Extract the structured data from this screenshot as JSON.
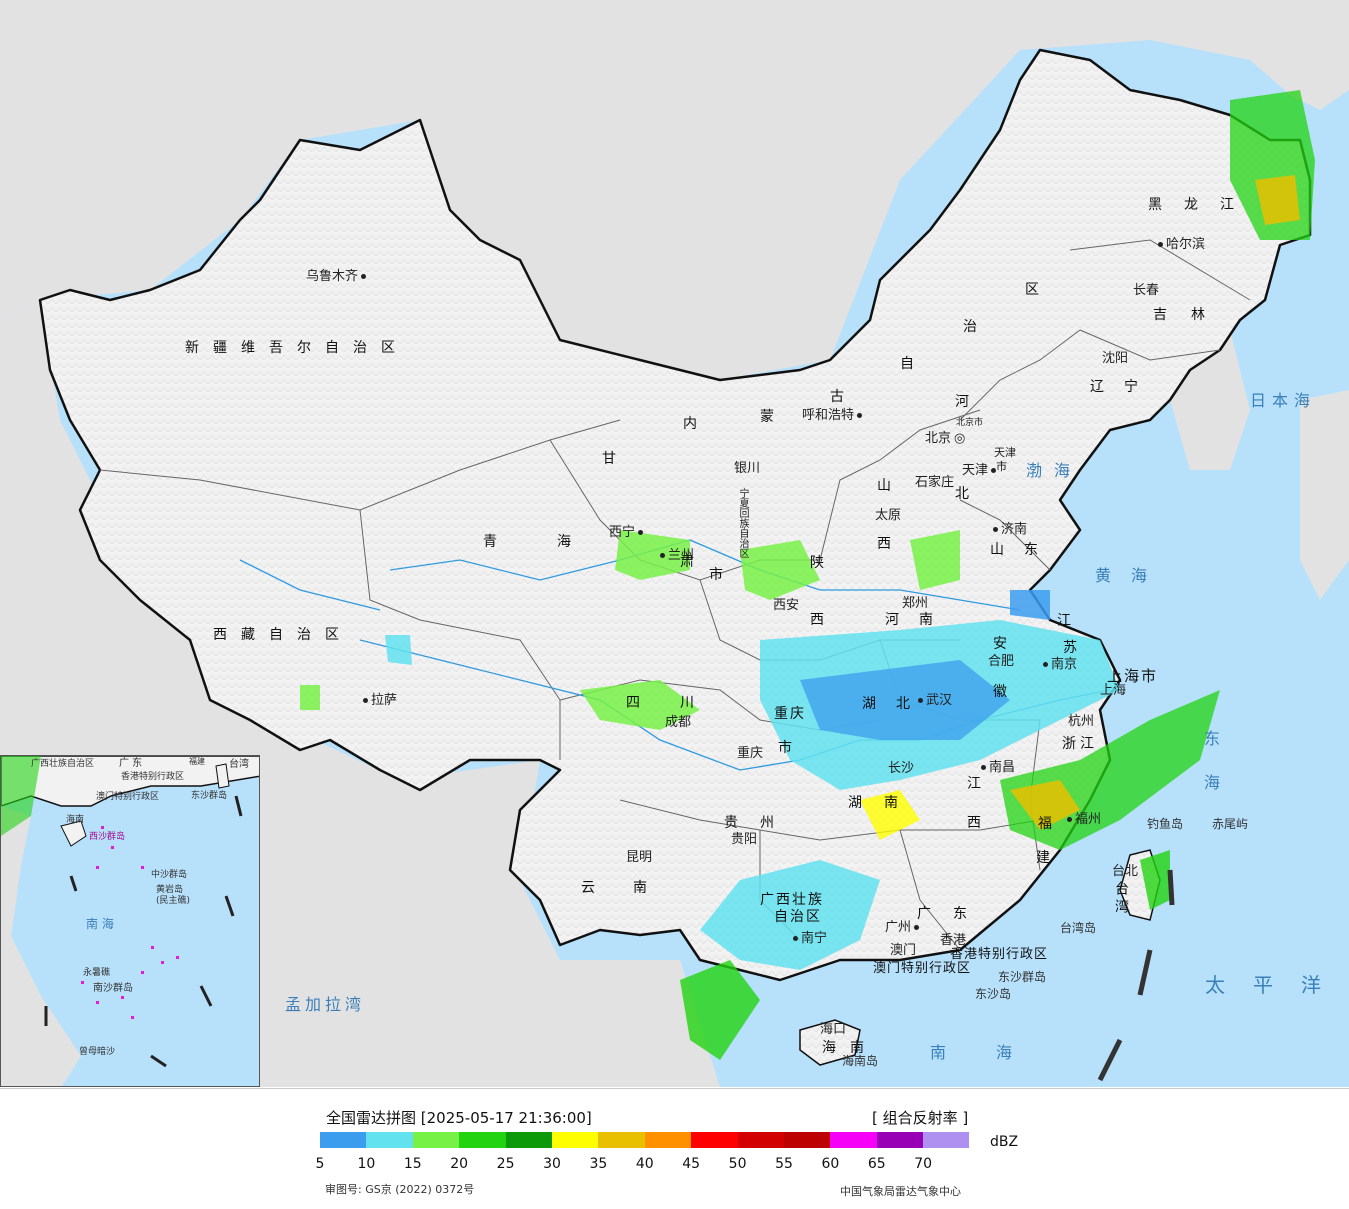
{
  "map": {
    "colors": {
      "sea": "#b7e1fb",
      "land": "#f4f4f4",
      "foreign": "#e4e4e4",
      "border": "#111111",
      "river": "#2f9be0"
    },
    "cities": [
      {
        "id": "urumqi",
        "label": "乌鲁木齐"
      },
      {
        "id": "lhasa",
        "label": "拉萨"
      },
      {
        "id": "xining",
        "label": "西宁"
      },
      {
        "id": "lanzhou",
        "label": "兰州"
      },
      {
        "id": "yinchuan",
        "label": "银川"
      },
      {
        "id": "hohhot",
        "label": "呼和浩特"
      },
      {
        "id": "beijing",
        "label": "北京"
      },
      {
        "id": "beijingcity",
        "label": "北京市"
      },
      {
        "id": "tianjin",
        "label": "天津"
      },
      {
        "id": "tianjincity",
        "label": "天津"
      },
      {
        "id": "shijiazhuang",
        "label": "石家庄"
      },
      {
        "id": "taiyuan",
        "label": "太原"
      },
      {
        "id": "jinan",
        "label": "济南"
      },
      {
        "id": "zhengzhou",
        "label": "郑州"
      },
      {
        "id": "xian",
        "label": "西安"
      },
      {
        "id": "chengdu",
        "label": "成都"
      },
      {
        "id": "chongqing",
        "label": "重庆"
      },
      {
        "id": "wuhan",
        "label": "武汉"
      },
      {
        "id": "hefei",
        "label": "合肥"
      },
      {
        "id": "nanjing",
        "label": "南京"
      },
      {
        "id": "shanghai",
        "label": "上海"
      },
      {
        "id": "hangzhou",
        "label": "杭州"
      },
      {
        "id": "nanchang",
        "label": "南昌"
      },
      {
        "id": "changsha",
        "label": "长沙"
      },
      {
        "id": "guiyang",
        "label": "贵阳"
      },
      {
        "id": "kunming",
        "label": "昆明"
      },
      {
        "id": "nanning",
        "label": "南宁"
      },
      {
        "id": "guangzhou",
        "label": "广州"
      },
      {
        "id": "fuzhou",
        "label": "福州"
      },
      {
        "id": "taibei",
        "label": "台北"
      },
      {
        "id": "haikou",
        "label": "海口"
      },
      {
        "id": "macau",
        "label": "澳门"
      },
      {
        "id": "hongkong",
        "label": "香港"
      },
      {
        "id": "harbin",
        "label": "哈尔滨"
      },
      {
        "id": "changchun",
        "label": "长春"
      },
      {
        "id": "shenyang",
        "label": "沈阳"
      }
    ],
    "provinces": [
      {
        "id": "xinjiang",
        "label": "新疆维吾尔自治区"
      },
      {
        "id": "xizang",
        "label": "西藏自治区"
      },
      {
        "id": "qinghai",
        "label": "青海"
      },
      {
        "id": "gansu",
        "label": "甘"
      },
      {
        "id": "gansu2",
        "label": "肃"
      },
      {
        "id": "nmg1",
        "label": "内"
      },
      {
        "id": "nmg2",
        "label": "蒙"
      },
      {
        "id": "nmg3",
        "label": "古"
      },
      {
        "id": "nmg4",
        "label": "自"
      },
      {
        "id": "nmg5",
        "label": "治"
      },
      {
        "id": "nmg6",
        "label": "区"
      },
      {
        "id": "ningxia",
        "label": "宁夏回族自治区"
      },
      {
        "id": "shaanxi1",
        "label": "陕"
      },
      {
        "id": "shaanxi2",
        "label": "西"
      },
      {
        "id": "shanxi1",
        "label": "山"
      },
      {
        "id": "shanxi2",
        "label": "西"
      },
      {
        "id": "hebei1",
        "label": "河"
      },
      {
        "id": "hebei2",
        "label": "北"
      },
      {
        "id": "shandong",
        "label": "山东"
      },
      {
        "id": "henan",
        "label": "河南"
      },
      {
        "id": "anhui1",
        "label": "安"
      },
      {
        "id": "anhui2",
        "label": "徽"
      },
      {
        "id": "jiangsu1",
        "label": "江"
      },
      {
        "id": "jiangsu2",
        "label": "苏"
      },
      {
        "id": "shanghaishi",
        "label": "上海市"
      },
      {
        "id": "zhejiang",
        "label": "浙江"
      },
      {
        "id": "hubei",
        "label": "湖北"
      },
      {
        "id": "sichuan",
        "label": "四川"
      },
      {
        "id": "chongqingshi1",
        "label": "重庆"
      },
      {
        "id": "chongqingshi2",
        "label": "市"
      },
      {
        "id": "hunan",
        "label": "湖南"
      },
      {
        "id": "jiangxi1",
        "label": "江"
      },
      {
        "id": "jiangxi2",
        "label": "西"
      },
      {
        "id": "fujian1",
        "label": "福"
      },
      {
        "id": "fujian2",
        "label": "建"
      },
      {
        "id": "guizhou",
        "label": "贵州"
      },
      {
        "id": "yunnan",
        "label": "云南"
      },
      {
        "id": "guangxi1",
        "label": "广西壮族"
      },
      {
        "id": "guangxi2",
        "label": "自治区"
      },
      {
        "id": "guangdong",
        "label": "广东"
      },
      {
        "id": "hainan",
        "label": "海南"
      },
      {
        "id": "taiwan",
        "label": "台湾"
      },
      {
        "id": "heilongjiang1",
        "label": "黑龙江"
      },
      {
        "id": "jilin",
        "label": "吉林"
      },
      {
        "id": "liaoning",
        "label": "辽宁"
      },
      {
        "id": "tianjinshi",
        "label": "市"
      },
      {
        "id": "gansushi",
        "label": "市"
      },
      {
        "id": "hk_sar",
        "label": "香港特别行政区"
      },
      {
        "id": "mo_sar",
        "label": "澳门特别行政区"
      }
    ],
    "seas": [
      {
        "id": "bohai",
        "label": "渤海"
      },
      {
        "id": "huanghai",
        "label": "黄海"
      },
      {
        "id": "donghai",
        "label": "东海"
      },
      {
        "id": "riben",
        "label": "日本海"
      },
      {
        "id": "taipingyang",
        "label": "太平洋"
      },
      {
        "id": "nanhai",
        "label": "南海"
      },
      {
        "id": "mengjiala",
        "label": "孟加拉湾"
      }
    ],
    "islands": [
      {
        "id": "diaoyu",
        "label": "钓鱼岛"
      },
      {
        "id": "chiwei",
        "label": "赤尾屿"
      },
      {
        "id": "taiwandao",
        "label": "台湾岛"
      },
      {
        "id": "dongsha",
        "label": "东沙群岛"
      },
      {
        "id": "dongshadao",
        "label": "东沙岛"
      },
      {
        "id": "hainandao",
        "label": "海南岛"
      }
    ],
    "inset": {
      "labels": [
        {
          "id": "i_guangdong",
          "label": "广 东"
        },
        {
          "id": "i_fujian",
          "label": "福建"
        },
        {
          "id": "i_taiwan",
          "label": "台湾"
        },
        {
          "id": "i_guangxi",
          "label": "广西壮族自治区"
        },
        {
          "id": "i_hk",
          "label": "香港特别行政区"
        },
        {
          "id": "i_mo",
          "label": "澳门特别行政区"
        },
        {
          "id": "i_dongsha",
          "label": "东沙群岛"
        },
        {
          "id": "i_hainan",
          "label": "海南"
        },
        {
          "id": "i_xisha",
          "label": "西沙群岛"
        },
        {
          "id": "i_zhongsha",
          "label": "中沙群岛"
        },
        {
          "id": "i_huangyan",
          "label": "黄岩岛"
        },
        {
          "id": "i_minzhu",
          "label": "(民主礁)"
        },
        {
          "id": "i_nanhai",
          "label": "南 海"
        },
        {
          "id": "i_yongshu",
          "label": "永暑礁"
        },
        {
          "id": "i_nansha",
          "label": "南沙群岛"
        },
        {
          "id": "i_zengmu",
          "label": "曾母暗沙"
        }
      ]
    }
  },
  "legend": {
    "title": "全国雷达拼图 [2025-05-17 21:36:00]",
    "product": "[ 组合反射率 ]",
    "unit": "dBZ",
    "colors": [
      "#3c9dee",
      "#62e2ee",
      "#78f146",
      "#22d312",
      "#0d9a0a",
      "#fefe00",
      "#e8c000",
      "#ff9100",
      "#ff0000",
      "#d30000",
      "#bd0000",
      "#f700f7",
      "#9700b5",
      "#ad90f0"
    ],
    "ticks": [
      "5",
      "10",
      "15",
      "20",
      "25",
      "30",
      "35",
      "40",
      "45",
      "50",
      "55",
      "60",
      "65",
      "70"
    ],
    "review_number": "审图号: GS京 (2022) 0372号",
    "source": "中国气象局雷达气象中心"
  }
}
